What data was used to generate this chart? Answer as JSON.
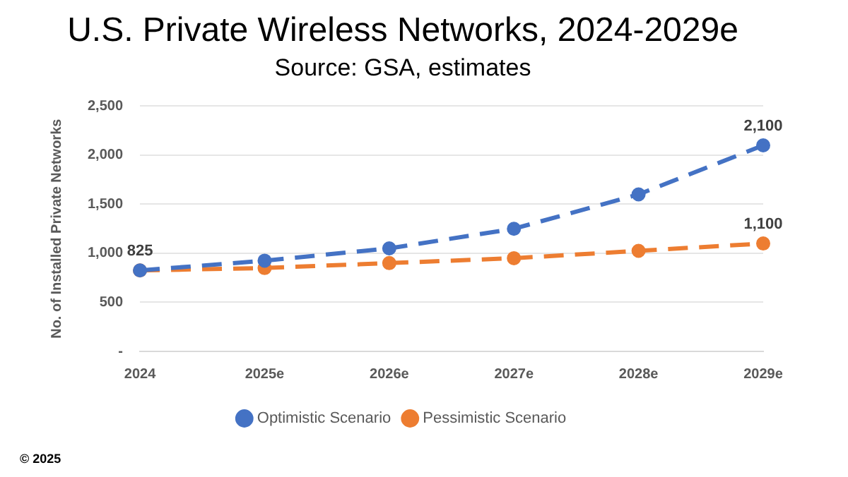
{
  "chart_data": {
    "type": "line",
    "title": "U.S. Private Wireless Networks, 2024-2029e",
    "subtitle": "Source: GSA, estimates",
    "ylabel": "No. of Installed Private Networks",
    "categories": [
      "2024",
      "2025e",
      "2026e",
      "2027e",
      "2028e",
      "2029e"
    ],
    "series": [
      {
        "name": "Optimistic Scenario",
        "color": "#4472c4",
        "values": [
          825,
          925,
          1050,
          1250,
          1600,
          2100
        ],
        "value_labels": [
          "825",
          null,
          null,
          null,
          null,
          "2,100"
        ]
      },
      {
        "name": "Pessimistic Scenario",
        "color": "#ed7d31",
        "values": [
          825,
          850,
          900,
          950,
          1025,
          1100
        ],
        "value_labels": [
          null,
          null,
          null,
          null,
          null,
          "1,100"
        ]
      }
    ],
    "ylim": [
      0,
      2500
    ],
    "yticks": [
      {
        "value": 0,
        "label": "-"
      },
      {
        "value": 500,
        "label": "500"
      },
      {
        "value": 1000,
        "label": "1,000"
      },
      {
        "value": 1500,
        "label": "1,500"
      },
      {
        "value": 2000,
        "label": "2,000"
      },
      {
        "value": 2500,
        "label": "2,500"
      }
    ],
    "grid": "y",
    "legend": "bottom",
    "marker": "circle",
    "line_style": "dashed",
    "annotations": [
      "© 2025"
    ]
  }
}
